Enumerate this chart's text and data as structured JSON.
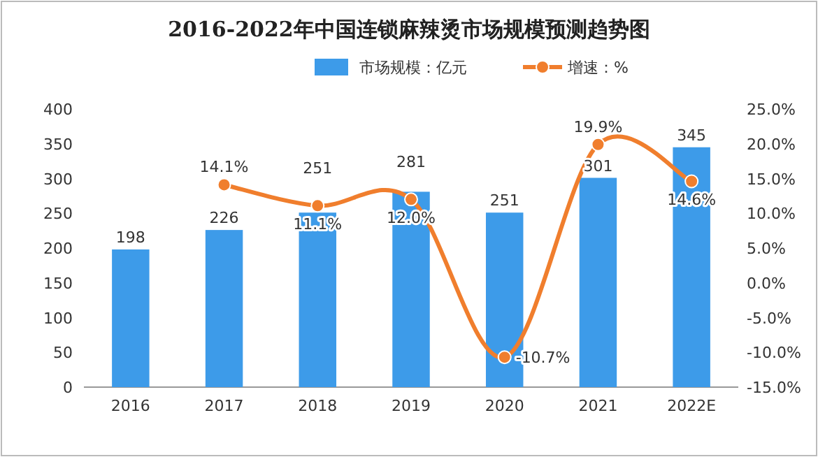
{
  "chart_data": {
    "type": "bar",
    "title": "2016-2022年中国连锁麻辣烫市场规模预测趋势图",
    "categories": [
      "2016",
      "2017",
      "2018",
      "2019",
      "2020",
      "2021",
      "2022E"
    ],
    "series": [
      {
        "name": "市场规模：亿元",
        "color": "#3d9be9",
        "values": [
          198,
          226,
          251,
          281,
          251,
          301,
          345
        ],
        "value_labels": [
          "198",
          "226",
          "251",
          "281",
          "251",
          "301",
          "345"
        ]
      },
      {
        "name": "增速：%",
        "type": "line",
        "axis": "y2",
        "color": "#f07e2d",
        "marker": "circle",
        "values": [
          null,
          14.1,
          11.1,
          12.0,
          -10.7,
          19.9,
          14.6
        ],
        "value_labels": [
          null,
          "14.1%",
          "11.1%",
          "12.0%",
          "-10.7%",
          "19.9%",
          "14.6%"
        ]
      }
    ],
    "ylim": [
      0,
      400
    ],
    "yticks": [
      0,
      50,
      100,
      150,
      200,
      250,
      300,
      350,
      400
    ],
    "y2lim": [
      -15,
      25
    ],
    "y2ticks": [
      {
        "value": -15,
        "label": "-15.0%"
      },
      {
        "value": -10,
        "label": "-10.0%"
      },
      {
        "value": -5,
        "label": "-5.0%"
      },
      {
        "value": 0,
        "label": "0.0%"
      },
      {
        "value": 5,
        "label": "5.0%"
      },
      {
        "value": 10,
        "label": "10.0%"
      },
      {
        "value": 15,
        "label": "15.0%"
      },
      {
        "value": 20,
        "label": "20.0%"
      },
      {
        "value": 25,
        "label": "25.0%"
      }
    ],
    "legend": "top"
  }
}
